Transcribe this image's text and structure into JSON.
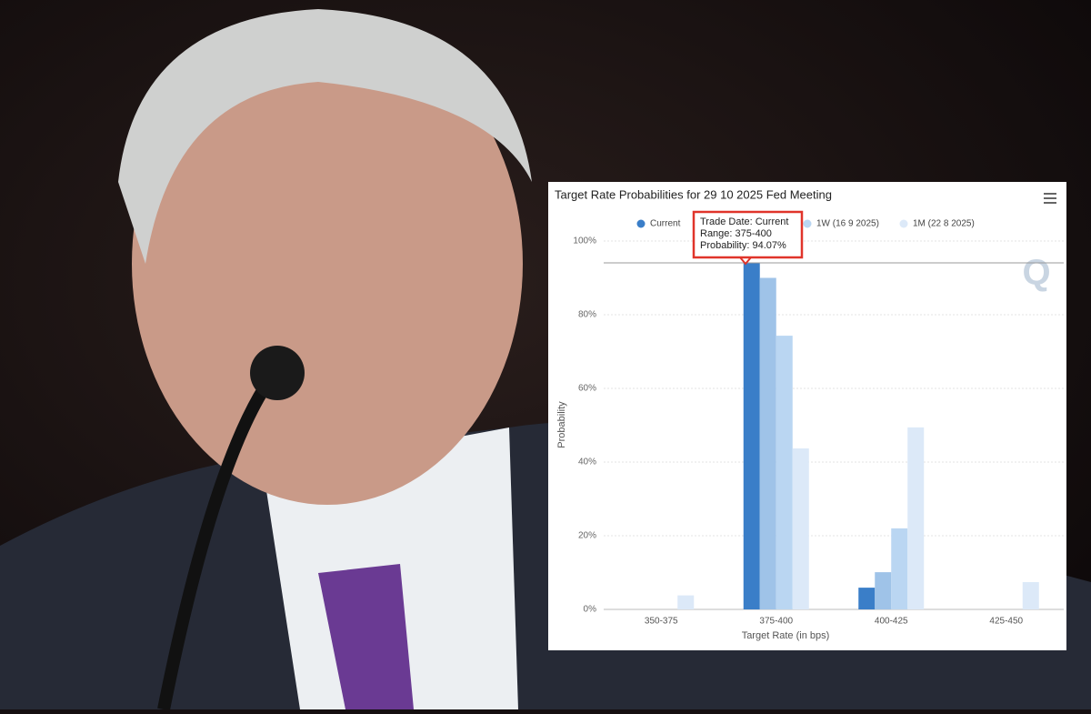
{
  "chart_data": {
    "type": "bar",
    "title": "Target Rate Probabilities for 29 10 2025 Fed Meeting",
    "categories": [
      "350-375",
      "375-400",
      "400-425",
      "425-450"
    ],
    "series": [
      {
        "name": "Current",
        "color": "#3a7ec8",
        "values": [
          0,
          94.07,
          5.9,
          0
        ]
      },
      {
        "name": null,
        "color": "#9fc3e8",
        "values": [
          0,
          90,
          10.1,
          0
        ]
      },
      {
        "name": "1W (16 9 2025)",
        "color": "#bad6f2",
        "values": [
          0,
          74.3,
          22,
          0
        ]
      },
      {
        "name": "1M (22 8 2025)",
        "color": "#dce9f8",
        "values": [
          3.8,
          43.7,
          49.4,
          7.4
        ]
      }
    ],
    "ylim": [
      0,
      100
    ],
    "yticks": [
      {
        "value": 0,
        "label": "0%"
      },
      {
        "value": 20,
        "label": "20%"
      },
      {
        "value": 40,
        "label": "40%"
      },
      {
        "value": 60,
        "label": "60%"
      },
      {
        "value": 80,
        "label": "80%"
      },
      {
        "value": 100,
        "label": "100%"
      }
    ],
    "grid": true,
    "xlabel": "Target Rate (in bps)",
    "ylabel": "Probability",
    "watermark": "Q",
    "tooltip": {
      "lines": [
        "Trade Date: Current",
        "Range: 375-400",
        "Probability: 94.07%"
      ]
    }
  }
}
